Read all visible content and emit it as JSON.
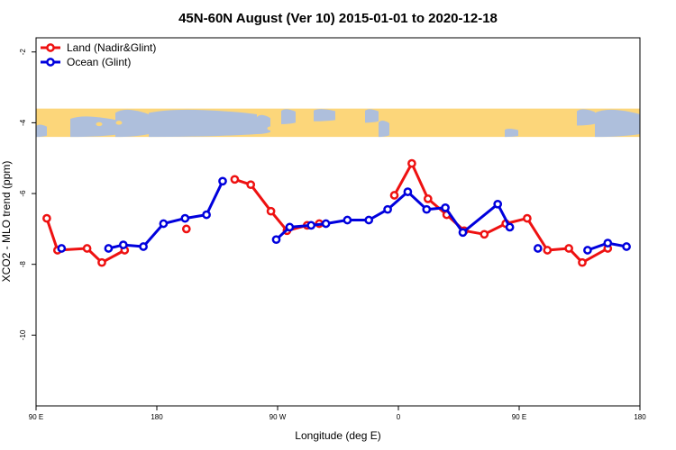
{
  "chart_data": {
    "type": "line",
    "title": "45N-60N August (Ver 10)   2015-01-01 to 2020-12-18",
    "xlabel": "Longitude (deg E)",
    "ylabel": "XCO2 - MLO trend (ppm)",
    "xlim": [
      90,
      540
    ],
    "ylim": [
      -12,
      -1.6
    ],
    "x_ticks": [
      {
        "value": 90,
        "label": "90 E"
      },
      {
        "value": 180,
        "label": "180"
      },
      {
        "value": 270,
        "label": "90 W"
      },
      {
        "value": 360,
        "label": "0"
      },
      {
        "value": 450,
        "label": "90 E"
      },
      {
        "value": 540,
        "label": "180"
      }
    ],
    "y_ticks": [
      {
        "value": -2,
        "label": "-2"
      },
      {
        "value": -4,
        "label": "-4"
      },
      {
        "value": -6,
        "label": "-6"
      },
      {
        "value": -8,
        "label": "-8"
      },
      {
        "value": -10,
        "label": "-10"
      }
    ],
    "legend": {
      "position": "top-left"
    },
    "map_strip": {
      "y_range": [
        -4.4,
        -3.6
      ],
      "ocean_color": "#aebfdc",
      "land_color": "#fcd67a"
    },
    "series": [
      {
        "name": "Land (Nadir&Glint)",
        "color": "#ee1111",
        "segments": [
          [
            [
              98,
              -6.7
            ],
            [
              106,
              -7.6
            ],
            [
              128,
              -7.55
            ],
            [
              139,
              -7.95
            ],
            [
              156,
              -7.6
            ]
          ],
          [
            [
              202,
              -7.0
            ]
          ],
          [
            [
              238,
              -5.6
            ],
            [
              250,
              -5.75
            ],
            [
              265,
              -6.5
            ],
            [
              277,
              -7.05
            ],
            [
              292,
              -6.9
            ],
            [
              301,
              -6.85
            ]
          ],
          [
            [
              357,
              -6.05
            ],
            [
              370,
              -5.15
            ],
            [
              382,
              -6.15
            ],
            [
              396,
              -6.6
            ],
            [
              409,
              -7.05
            ],
            [
              424,
              -7.15
            ],
            [
              440,
              -6.85
            ],
            [
              456,
              -6.7
            ],
            [
              471,
              -7.6
            ],
            [
              487,
              -7.55
            ],
            [
              497,
              -7.95
            ],
            [
              516,
              -7.55
            ]
          ]
        ]
      },
      {
        "name": "Ocean (Glint)",
        "color": "#0000dd",
        "segments": [
          [
            [
              109,
              -7.55
            ]
          ],
          [
            [
              144,
              -7.55
            ],
            [
              155,
              -7.45
            ],
            [
              170,
              -7.5
            ],
            [
              185,
              -6.85
            ],
            [
              201,
              -6.7
            ],
            [
              217,
              -6.6
            ],
            [
              229,
              -5.65
            ]
          ],
          [
            [
              269,
              -7.3
            ],
            [
              279,
              -6.95
            ],
            [
              295,
              -6.9
            ],
            [
              306,
              -6.85
            ],
            [
              322,
              -6.75
            ],
            [
              338,
              -6.75
            ],
            [
              352,
              -6.45
            ],
            [
              367,
              -5.95
            ],
            [
              381,
              -6.45
            ],
            [
              395,
              -6.4
            ],
            [
              408,
              -7.1
            ],
            [
              434,
              -6.3
            ],
            [
              443,
              -6.95
            ]
          ],
          [
            [
              464,
              -7.55
            ]
          ],
          [
            [
              501,
              -7.6
            ],
            [
              516,
              -7.4
            ],
            [
              530,
              -7.5
            ]
          ]
        ]
      }
    ]
  }
}
